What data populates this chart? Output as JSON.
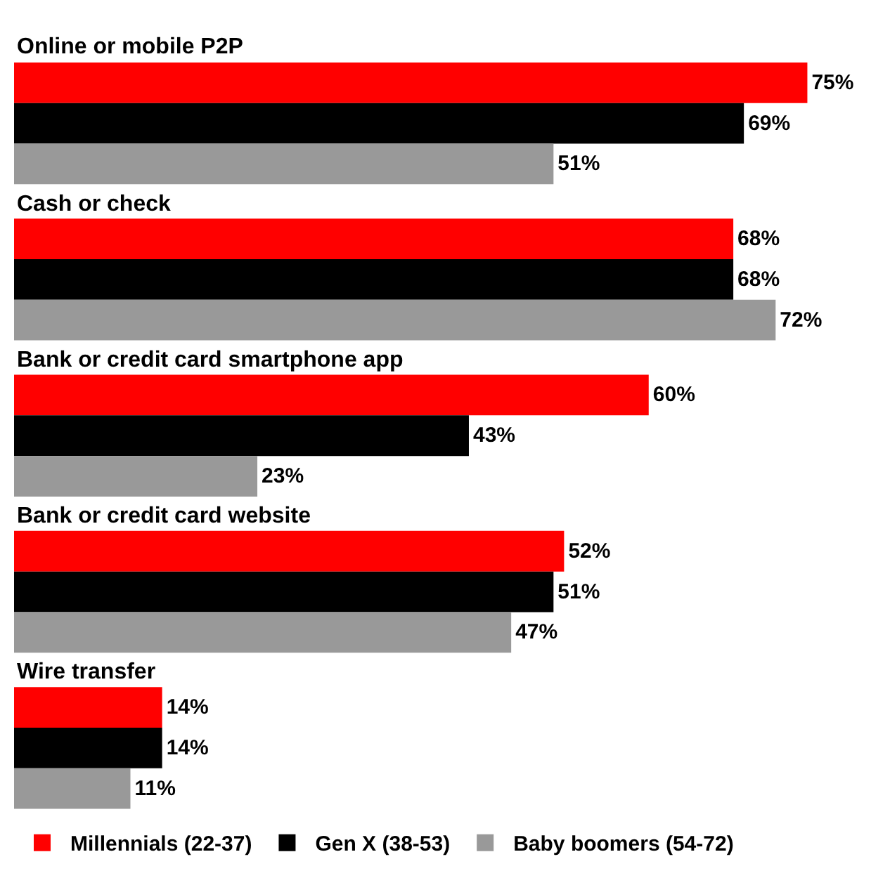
{
  "chart_data": {
    "type": "bar",
    "orientation": "horizontal",
    "categories": [
      "Online or mobile P2P",
      "Cash or check",
      "Bank or credit card smartphone app",
      "Bank or credit card website",
      "Wire transfer"
    ],
    "series": [
      {
        "name": "Millennials (22-37)",
        "color": "#ff0000",
        "values": [
          75,
          68,
          60,
          52,
          14
        ],
        "value_labels": [
          "75%",
          "68%",
          "60%",
          "52%",
          "14%"
        ]
      },
      {
        "name": "Gen X (38-53)",
        "color": "#000000",
        "values": [
          69,
          68,
          43,
          51,
          14
        ],
        "value_labels": [
          "69%",
          "68%",
          "43%",
          "51%",
          "14%"
        ]
      },
      {
        "name": "Baby boomers (54-72)",
        "color": "#999999",
        "values": [
          51,
          72,
          23,
          47,
          11
        ],
        "value_labels": [
          "51%",
          "72%",
          "23%",
          "47%",
          "11%"
        ]
      }
    ],
    "grid": false,
    "legend": "bottom"
  }
}
